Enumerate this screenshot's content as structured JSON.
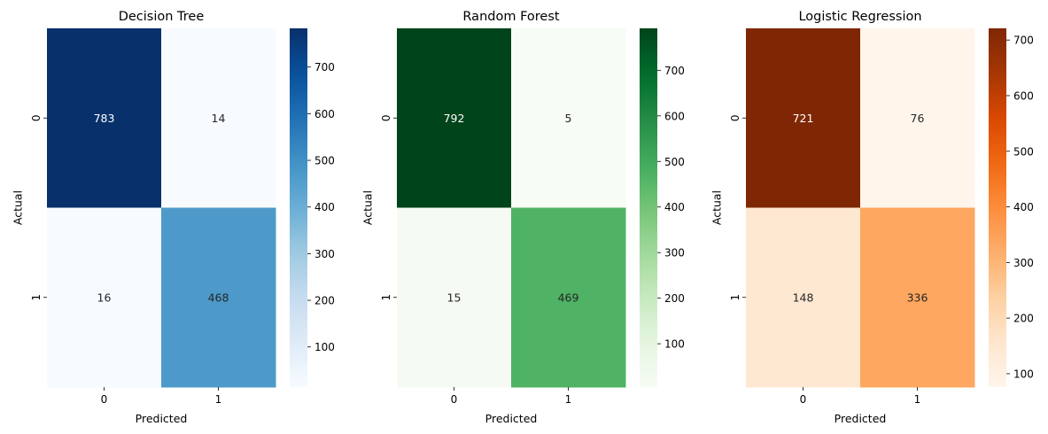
{
  "chart_data": [
    {
      "type": "heatmap",
      "title": "Decision Tree",
      "xlabel": "Predicted",
      "ylabel": "Actual",
      "x_ticks": [
        "0",
        "1"
      ],
      "y_ticks": [
        "0",
        "1"
      ],
      "values": [
        [
          783,
          14
        ],
        [
          16,
          468
        ]
      ],
      "colormap": "Blues",
      "colors": {
        "low": "#f7fbff",
        "high": "#08306b"
      },
      "colorbar_ticks": [
        100,
        200,
        300,
        400,
        500,
        600,
        700
      ],
      "colorbar_range": [
        14,
        783
      ]
    },
    {
      "type": "heatmap",
      "title": "Random Forest",
      "xlabel": "Predicted",
      "ylabel": "Actual",
      "x_ticks": [
        "0",
        "1"
      ],
      "y_ticks": [
        "0",
        "1"
      ],
      "values": [
        [
          792,
          5
        ],
        [
          15,
          469
        ]
      ],
      "colormap": "Greens",
      "colors": {
        "low": "#f7fcf5",
        "high": "#00441b"
      },
      "colorbar_ticks": [
        100,
        200,
        300,
        400,
        500,
        600,
        700
      ],
      "colorbar_range": [
        5,
        792
      ]
    },
    {
      "type": "heatmap",
      "title": "Logistic Regression",
      "xlabel": "Predicted",
      "ylabel": "Actual",
      "x_ticks": [
        "0",
        "1"
      ],
      "y_ticks": [
        "0",
        "1"
      ],
      "values": [
        [
          721,
          76
        ],
        [
          148,
          336
        ]
      ],
      "colormap": "Oranges",
      "colors": {
        "low": "#fff5eb",
        "high": "#7f2704"
      },
      "colorbar_ticks": [
        100,
        200,
        300,
        400,
        500,
        600,
        700
      ],
      "colorbar_range": [
        76,
        721
      ]
    }
  ]
}
